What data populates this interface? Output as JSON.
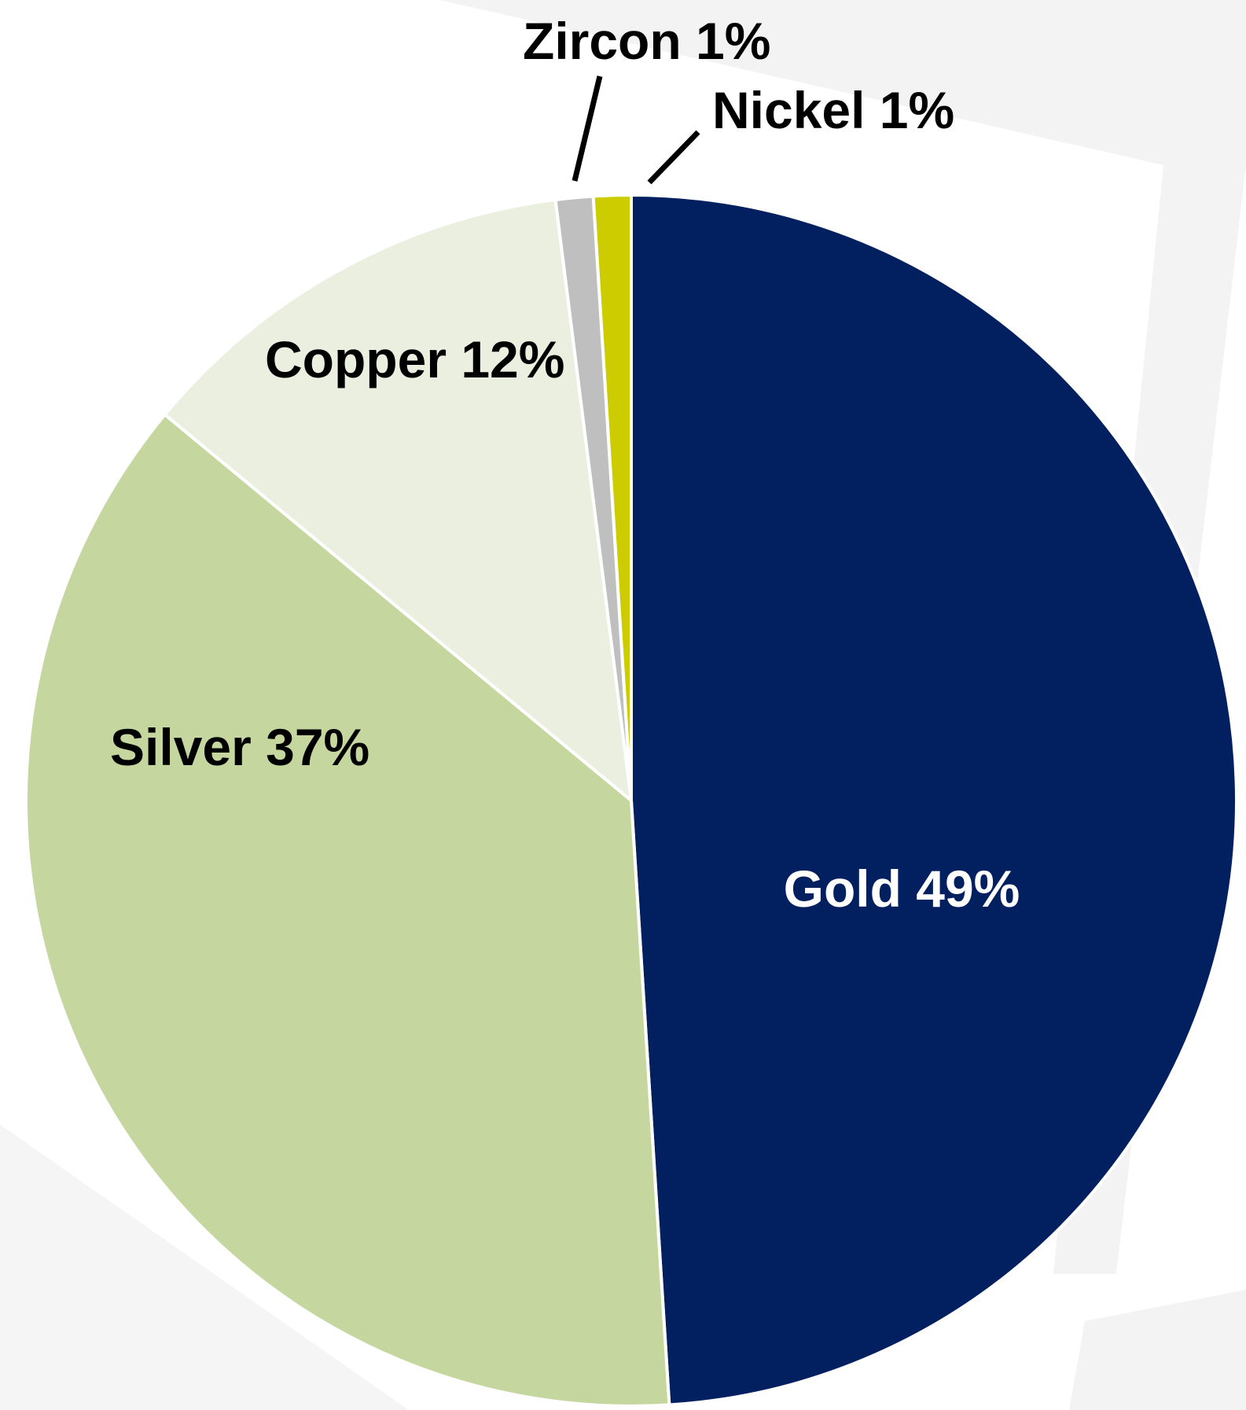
{
  "chart_data": {
    "type": "pie",
    "title": "",
    "slices": [
      {
        "label": "Gold 49%",
        "value": 49,
        "color": "#02205f",
        "label_color": "#ffffff"
      },
      {
        "label": "Silver 37%",
        "value": 37,
        "color": "#c5d79e",
        "label_color": "#000000"
      },
      {
        "label": "Copper 12%",
        "value": 12,
        "color": "#eaefdf",
        "label_color": "#000000"
      },
      {
        "label": "Zircon 1%",
        "value": 1,
        "color": "#bfbfbf",
        "label_color": "#000000"
      },
      {
        "label": "Nickel 1%",
        "value": 1,
        "color": "#cccc00",
        "label_color": "#000000"
      }
    ],
    "legend": "none",
    "background_color": "#ffffff"
  }
}
